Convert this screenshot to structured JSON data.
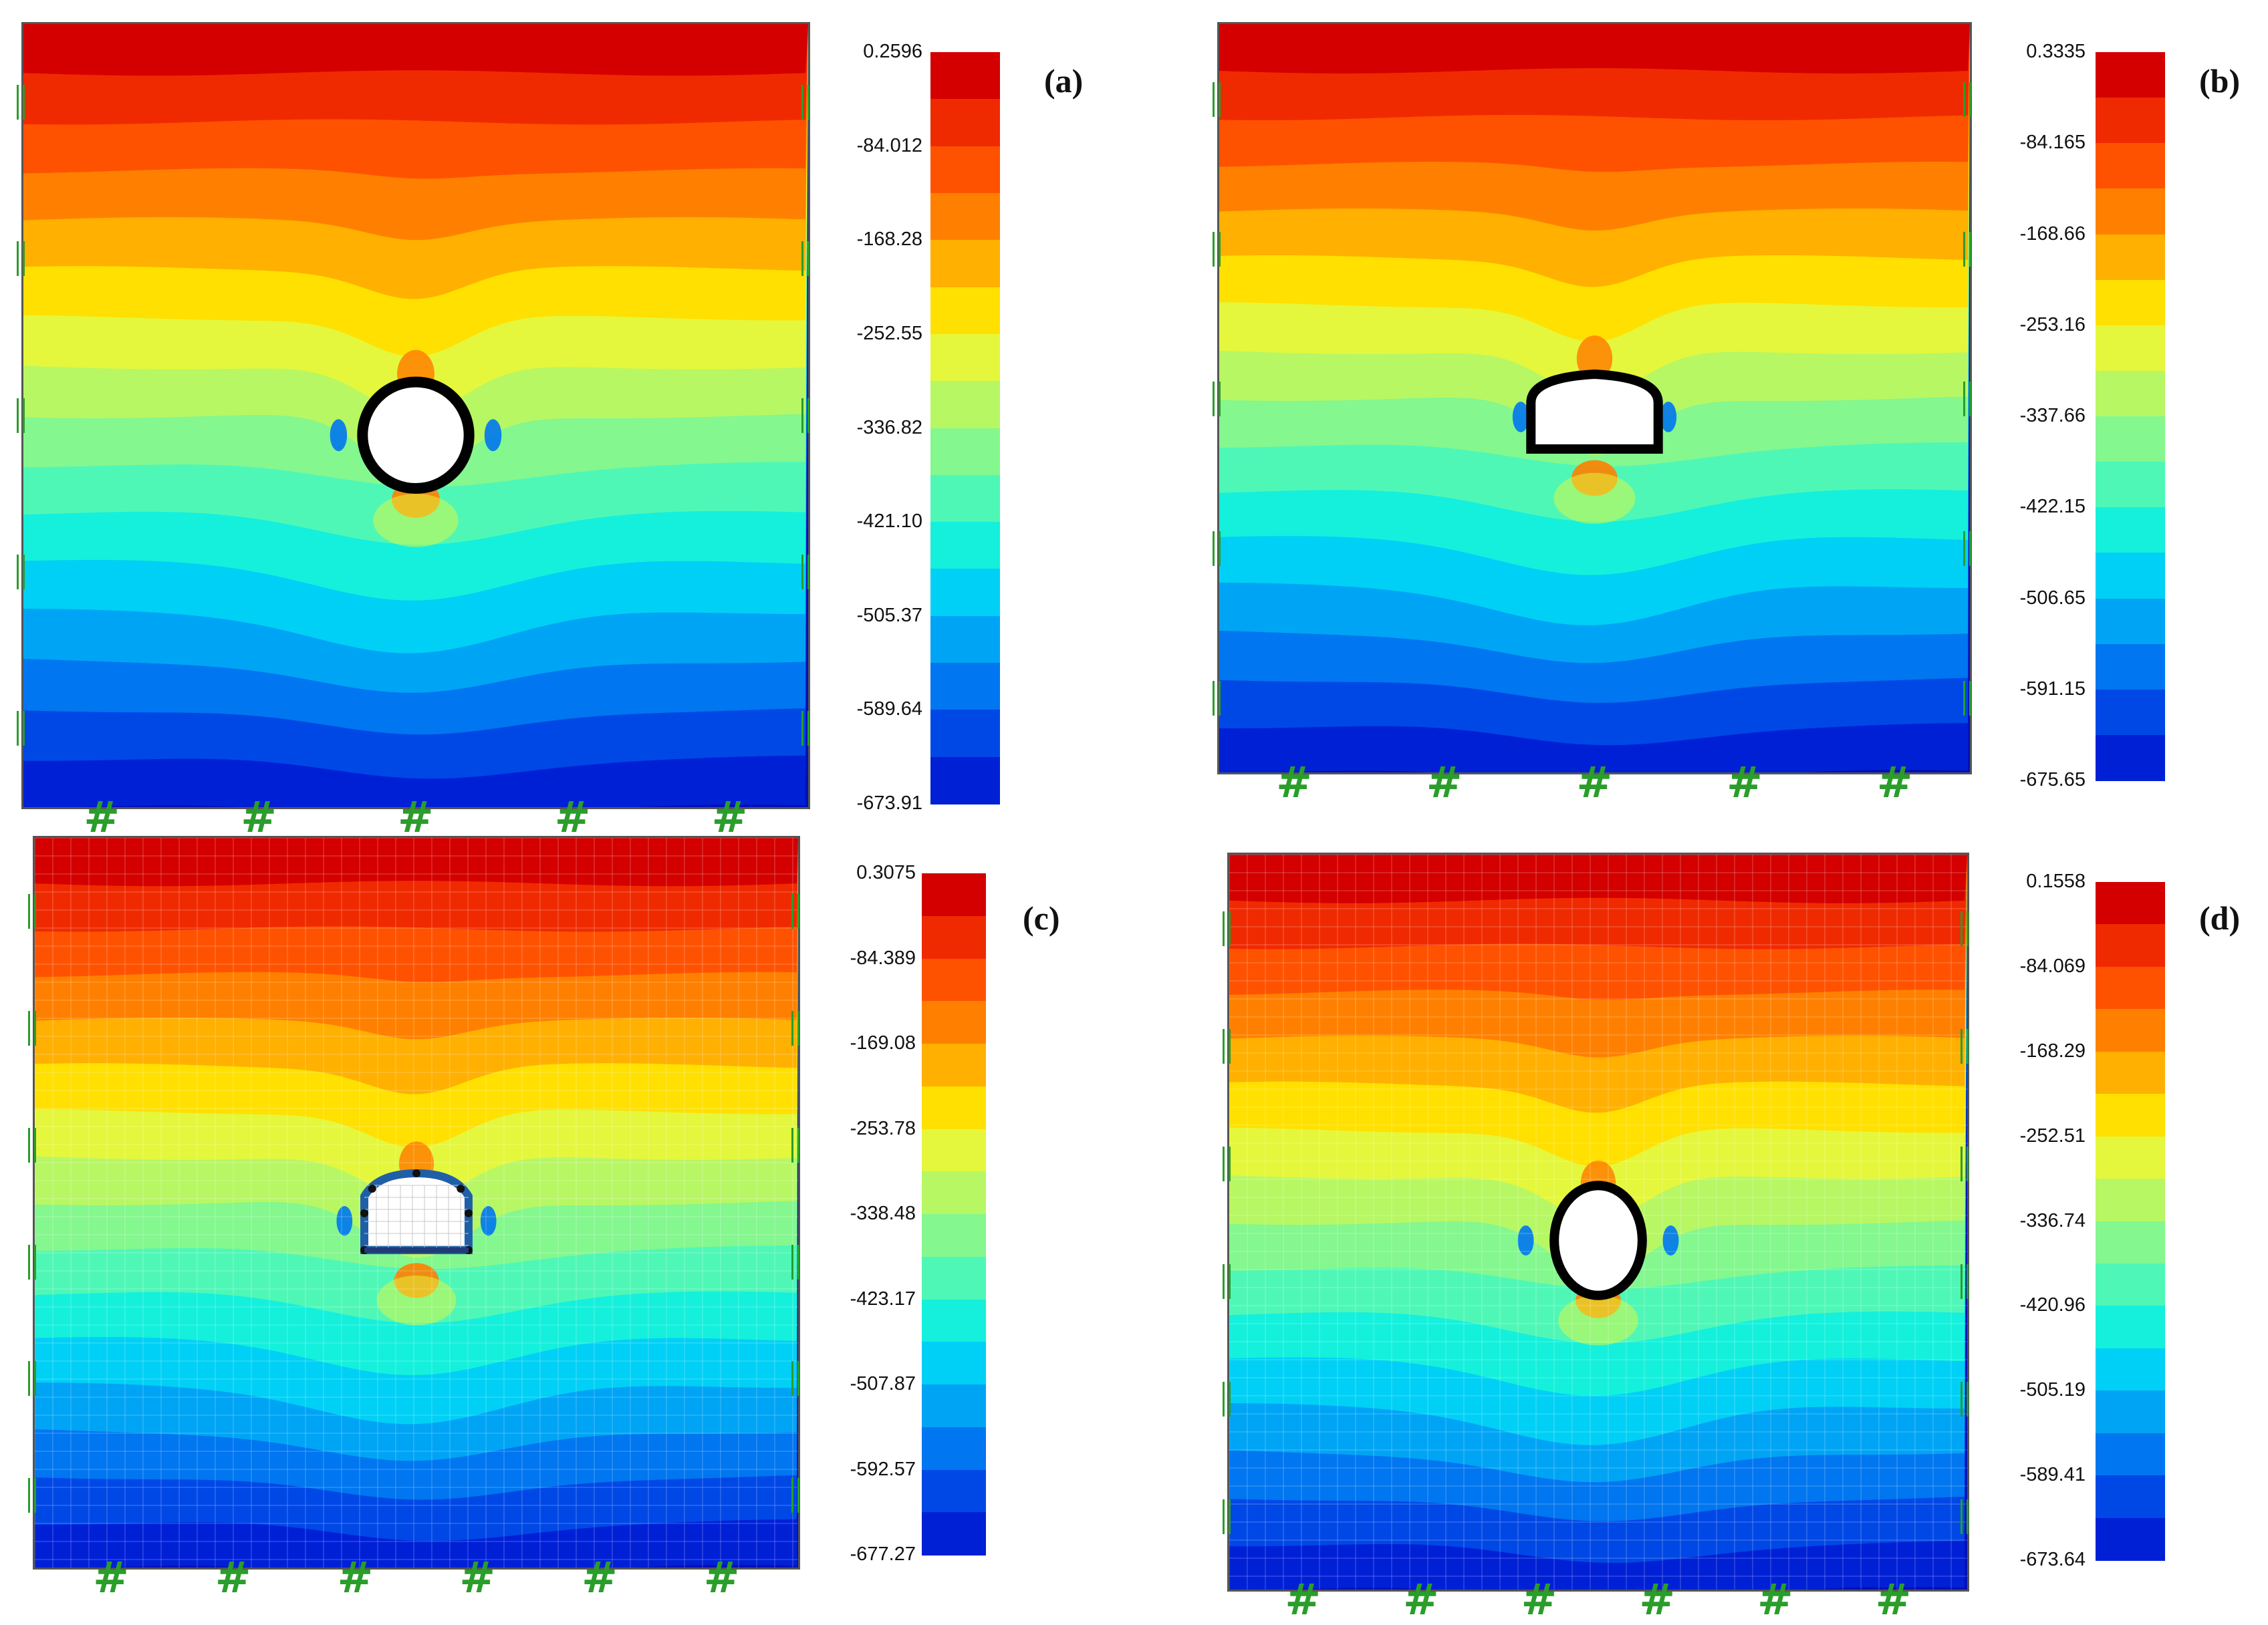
{
  "figure": {
    "panels": [
      {
        "id": "a",
        "label": "(a)",
        "tunnel_shape": "circular",
        "colorbar_ticks": [
          "0.2596",
          "-84.012",
          "-168.28",
          "-252.55",
          "-336.82",
          "-421.10",
          "-505.37",
          "-589.64",
          "-673.91"
        ],
        "support_symbol": "#",
        "mesh": false
      },
      {
        "id": "b",
        "label": "(b)",
        "tunnel_shape": "horseshoe",
        "colorbar_ticks": [
          "0.3335",
          "-84.165",
          "-168.66",
          "-253.16",
          "-337.66",
          "-422.15",
          "-506.65",
          "-591.15",
          "-675.65"
        ],
        "support_symbol": "#",
        "mesh": false
      },
      {
        "id": "c",
        "label": "(c)",
        "tunnel_shape": "straight-wall arch",
        "colorbar_ticks": [
          "0.3075",
          "-84.389",
          "-169.08",
          "-253.78",
          "-338.48",
          "-423.17",
          "-507.87",
          "-592.57",
          "-677.27"
        ],
        "support_symbol": "#",
        "mesh": true
      },
      {
        "id": "d",
        "label": "(d)",
        "tunnel_shape": "elliptical",
        "colorbar_ticks": [
          "0.1558",
          "-84.069",
          "-168.29",
          "-252.51",
          "-336.74",
          "-420.96",
          "-505.19",
          "-589.41",
          "-673.64"
        ],
        "support_symbol": "#",
        "mesh": true
      }
    ],
    "palette": [
      "#d40000",
      "#f02a00",
      "#ff5200",
      "#ff8000",
      "#ffb000",
      "#ffe000",
      "#e4f73c",
      "#b7f764",
      "#84f78e",
      "#4ff7b6",
      "#14f0dc",
      "#00d0f5",
      "#00a4f5",
      "#0076f0",
      "#0048e6",
      "#0020d6",
      "#0010b8"
    ]
  }
}
